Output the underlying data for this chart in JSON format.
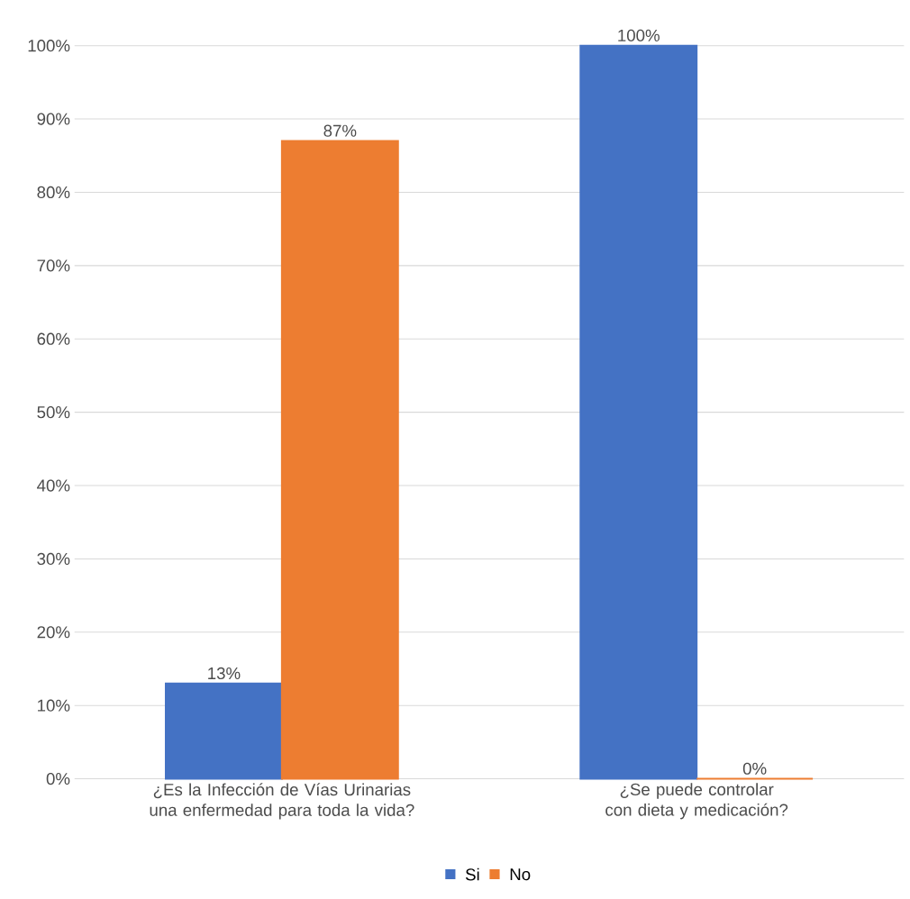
{
  "chart_data": {
    "type": "bar",
    "categories": [
      "¿Es la Infección de Vías Urinarias una enfermedad para toda la vida?",
      "¿Se puede controlar con dieta y medicación?"
    ],
    "series": [
      {
        "name": "Si",
        "color": "#4472c4",
        "values": [
          13,
          100
        ],
        "value_labels": [
          "13%",
          "100%"
        ]
      },
      {
        "name": "No",
        "color": "#ed7d31",
        "values": [
          87,
          0
        ],
        "value_labels": [
          "87%",
          "0%"
        ]
      }
    ],
    "ylim": [
      0,
      100
    ],
    "yticks": [
      {
        "value": 0,
        "label": "0%"
      },
      {
        "value": 10,
        "label": "10%"
      },
      {
        "value": 20,
        "label": "20%"
      },
      {
        "value": 30,
        "label": "30%"
      },
      {
        "value": 40,
        "label": "40%"
      },
      {
        "value": 50,
        "label": "50%"
      },
      {
        "value": 60,
        "label": "60%"
      },
      {
        "value": 70,
        "label": "70%"
      },
      {
        "value": 80,
        "label": "80%"
      },
      {
        "value": 90,
        "label": "90%"
      },
      {
        "value": 100,
        "label": "100%"
      }
    ],
    "grid": "y",
    "legend": "bottom"
  }
}
